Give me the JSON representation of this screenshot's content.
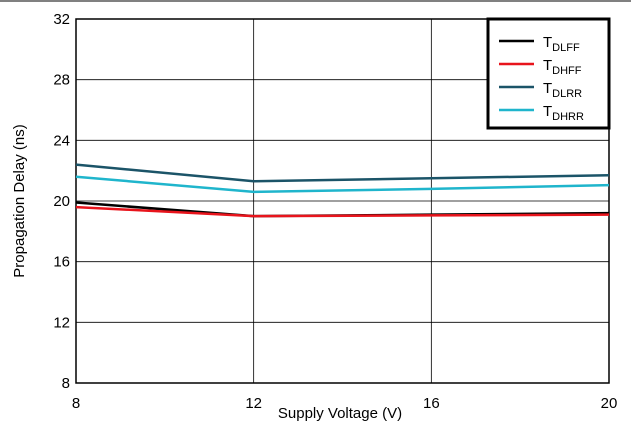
{
  "chart_data": {
    "type": "line",
    "xlabel": "Supply Voltage (V)",
    "ylabel": "Propagation Delay (ns)",
    "x": [
      8,
      12,
      16,
      20
    ],
    "xlim": [
      8,
      20
    ],
    "xticks": [
      8,
      12,
      16,
      20
    ],
    "ylim": [
      8,
      32
    ],
    "yticks": [
      8,
      12,
      16,
      20,
      24,
      28,
      32
    ],
    "grid": true,
    "legend": "upper right",
    "series": [
      {
        "name": "TDLFF",
        "color": "#000000",
        "values": [
          19.9,
          19.0,
          19.1,
          19.2
        ]
      },
      {
        "name": "TDHFF",
        "color": "#e8141c",
        "values": [
          19.6,
          19.0,
          19.05,
          19.1
        ]
      },
      {
        "name": "TDLRR",
        "color": "#1b5468",
        "values": [
          22.4,
          21.3,
          21.5,
          21.7
        ]
      },
      {
        "name": "TDHRR",
        "color": "#1fb5cc",
        "values": [
          21.6,
          20.6,
          20.8,
          21.05
        ]
      }
    ]
  }
}
